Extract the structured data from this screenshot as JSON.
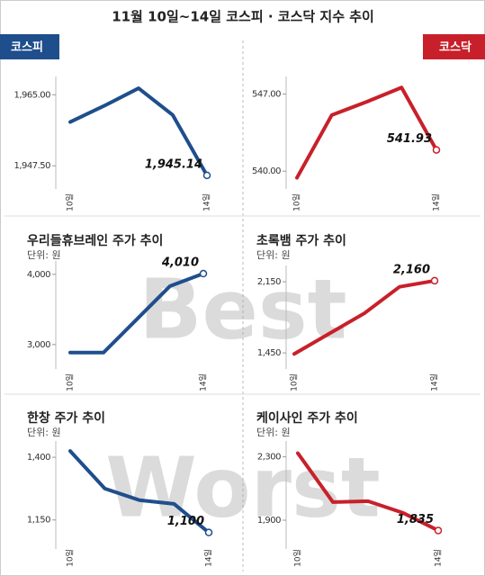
{
  "title": "11월 10일~14일 코스피 · 코스닥 지수 추이",
  "badges": [
    "코스피",
    "코스닥"
  ],
  "watermarks": [
    "Best",
    "Worst"
  ],
  "chart_data": [
    {
      "type": "line",
      "color": "#1f4e8c",
      "categories": [
        "10일",
        null,
        null,
        null,
        "14일"
      ],
      "values": [
        1958.3,
        1962.3,
        1966.6,
        1960.0,
        1945.14
      ],
      "value_labels": [
        null,
        null,
        null,
        null,
        "1,945.14"
      ],
      "ylim": [
        1944,
        1969.5
      ],
      "yticks": [
        {
          "value": 1947.5,
          "label": "1,947.50"
        },
        {
          "value": 1965,
          "label": "1,965.00"
        }
      ]
    },
    {
      "type": "line",
      "color": "#c8202a",
      "categories": [
        "10일",
        null,
        null,
        null,
        "14일"
      ],
      "values": [
        539.4,
        545.1,
        546.3,
        547.6,
        541.93
      ],
      "ylim": [
        539.2,
        548.6
      ],
      "yticks": [
        {
          "value": 540,
          "label": "540.00"
        },
        {
          "value": 547,
          "label": "547.00"
        }
      ]
    },
    {
      "type": "line",
      "title": "우리들휴브레인 주가 추이",
      "subtitle": "단위: 원",
      "color": "#1f4e8c",
      "categories": [
        "10일",
        null,
        null,
        null,
        "14일"
      ],
      "values": [
        2885,
        2885,
        3359,
        3833,
        4010
      ],
      "value_labels": [
        null,
        null,
        null,
        null,
        "4,010"
      ],
      "ylim": [
        2780,
        4190
      ],
      "yticks": [
        {
          "value": 3000,
          "label": "3,000"
        },
        {
          "value": 4000,
          "label": "4,000"
        }
      ]
    },
    {
      "type": "line",
      "title": "초록뱀 주가 추이",
      "subtitle": "단위: 원",
      "color": "#c8202a",
      "categories": [
        "10일",
        null,
        null,
        null,
        "14일"
      ],
      "values": [
        1440,
        1640,
        1840,
        2100,
        2160
      ],
      "value_labels": [
        null,
        null,
        null,
        null,
        "2,160"
      ],
      "ylim": [
        1380,
        2310
      ],
      "yticks": [
        {
          "value": 1450,
          "label": "1,450"
        },
        {
          "value": 2150,
          "label": "2,150"
        }
      ]
    },
    {
      "type": "line",
      "title": "한창 주가 추이",
      "subtitle": "단위: 원",
      "color": "#1f4e8c",
      "categories": [
        "10일",
        null,
        null,
        null,
        "14일"
      ],
      "values": [
        1425,
        1275,
        1229,
        1214,
        1100
      ],
      "value_labels": [
        null,
        null,
        null,
        null,
        "1,100"
      ],
      "ylim": [
        1070,
        1465
      ],
      "yticks": [
        {
          "value": 1150,
          "label": "1,150"
        },
        {
          "value": 1400,
          "label": "1,400"
        }
      ]
    },
    {
      "type": "line",
      "title": "케이사인 주가 추이",
      "subtitle": "단위: 원",
      "color": "#c8202a",
      "categories": [
        "10일",
        null,
        null,
        null,
        "14일"
      ],
      "values": [
        2323,
        2014,
        2020,
        1946,
        1835
      ],
      "value_labels": [
        null,
        null,
        null,
        null,
        "1,835"
      ],
      "ylim": [
        1775,
        2400
      ],
      "yticks": [
        {
          "value": 1900,
          "label": "1,900"
        },
        {
          "value": 2300,
          "label": "2,300"
        }
      ]
    }
  ]
}
